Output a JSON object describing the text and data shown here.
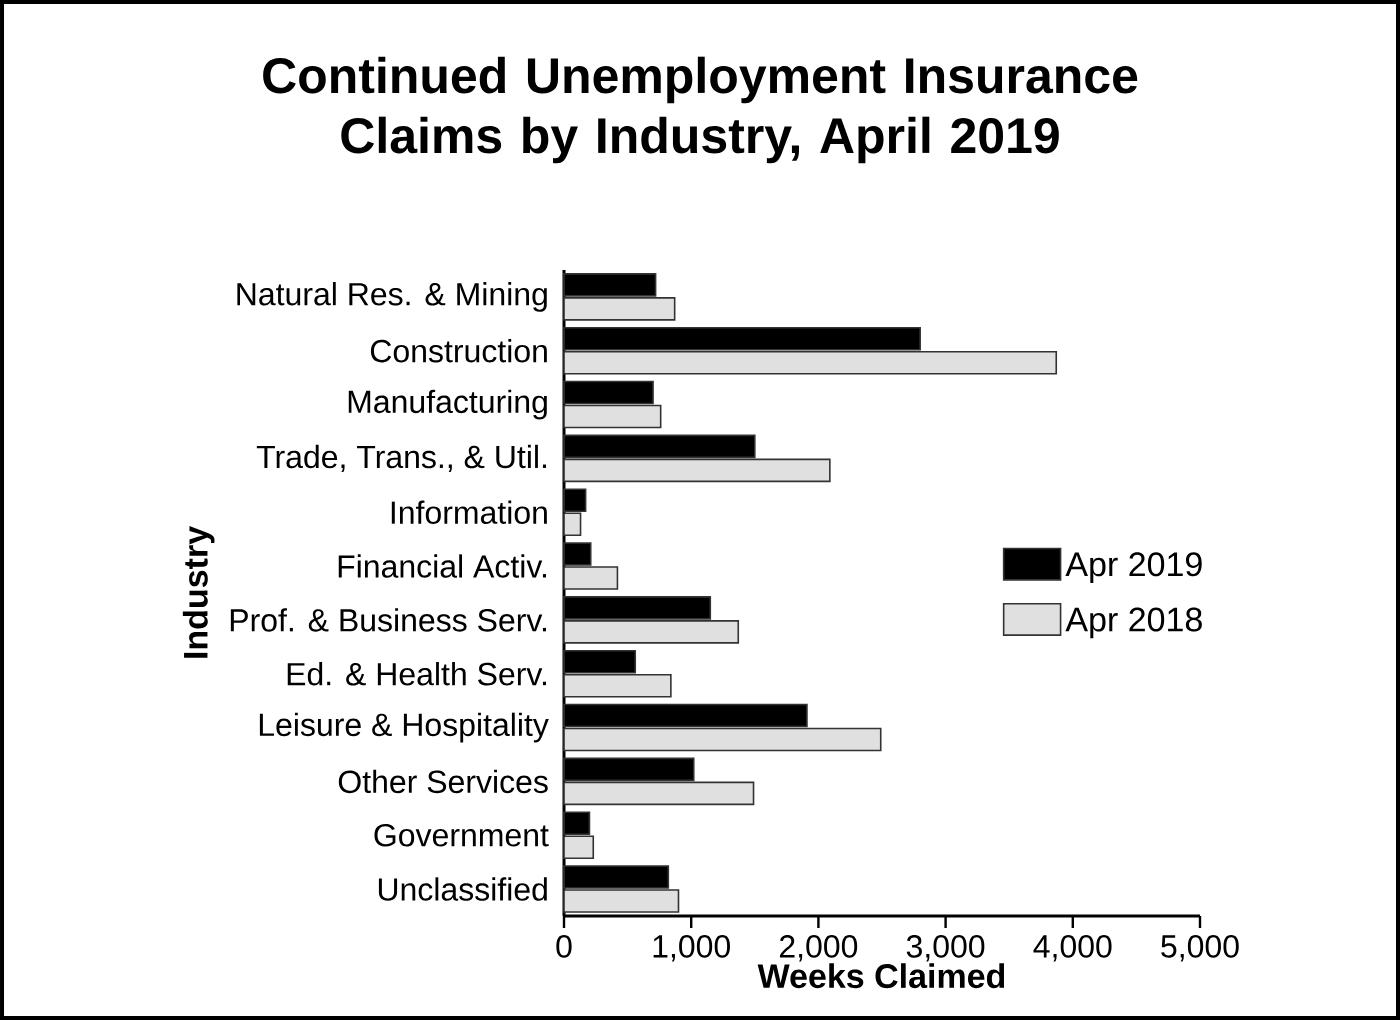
{
  "chart_data": {
    "type": "bar",
    "orientation": "horizontal",
    "title": "Continued Unemployment Insurance Claims by Industry, April 2019",
    "xlabel": "Weeks Claimed",
    "ylabel": "Industry",
    "categories": [
      "Natural Res. & Mining",
      "Construction",
      "Manufacturing",
      "Trade, Trans., & Util.",
      "Information",
      "Financial Activ.",
      "Prof. & Business Serv.",
      "Ed. & Health Serv.",
      "Leisure & Hospitality",
      "Other Services",
      "Government",
      "Unclassified"
    ],
    "series": [
      {
        "name": "Apr 2019",
        "color": "#000000",
        "values": [
          720,
          2800,
          700,
          1500,
          170,
          210,
          1150,
          560,
          1910,
          1020,
          200,
          820
        ]
      },
      {
        "name": "Apr 2018",
        "color": "#e0e0e0",
        "values": [
          870,
          3870,
          760,
          2090,
          130,
          420,
          1370,
          840,
          2490,
          1490,
          230,
          900
        ]
      }
    ],
    "xlim": [
      0,
      5000
    ],
    "xticks": [
      0,
      {
        "value": 1000,
        "label": "1,000"
      },
      {
        "value": 2000,
        "label": "2,000"
      },
      {
        "value": 3000,
        "label": "3,000"
      },
      {
        "value": 4000,
        "label": "4,000"
      },
      {
        "value": 5000,
        "label": "5,000"
      }
    ],
    "legend": "right",
    "grid": false
  }
}
